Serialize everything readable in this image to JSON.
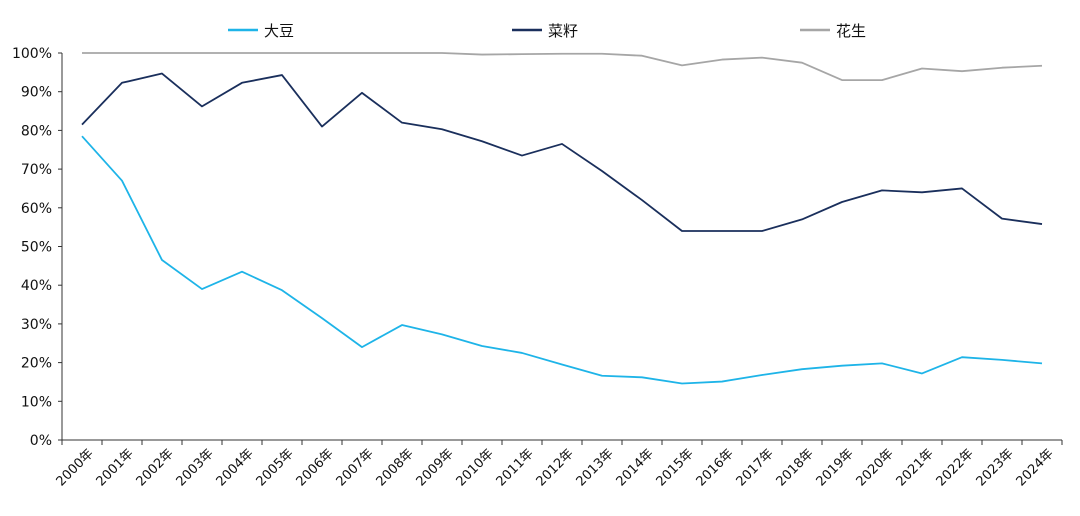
{
  "chart_data": {
    "type": "line",
    "x": [
      "2000年",
      "2001年",
      "2002年",
      "2003年",
      "2004年",
      "2005年",
      "2006年",
      "2007年",
      "2008年",
      "2009年",
      "2010年",
      "2011年",
      "2012年",
      "2013年",
      "2014年",
      "2015年",
      "2016年",
      "2017年",
      "2018年",
      "2019年",
      "2020年",
      "2021年",
      "2022年",
      "2023年",
      "2024年"
    ],
    "series": [
      {
        "name": "大豆",
        "color": "#1eb4e8",
        "values": [
          78.5,
          67,
          46.5,
          39,
          43.5,
          38.7,
          31.5,
          24,
          29.7,
          27.3,
          24.3,
          22.5,
          19.5,
          16.6,
          16.2,
          14.6,
          15.1,
          16.8,
          18.3,
          19.2,
          19.8,
          17.2,
          21.4,
          20.7,
          19.8
        ]
      },
      {
        "name": "菜籽",
        "color": "#1a2f5c",
        "values": [
          81.5,
          92.3,
          94.7,
          86.2,
          92.3,
          94.3,
          81.0,
          89.7,
          82.0,
          80.3,
          77.2,
          73.5,
          76.5,
          69.5,
          62.0,
          54.0,
          54.0,
          54.0,
          57.0,
          61.5,
          64.5,
          64.0,
          65.0,
          57.2,
          55.8
        ]
      },
      {
        "name": "花生",
        "color": "#a6a6a6",
        "values": [
          100,
          100,
          100,
          100,
          100,
          100,
          100,
          100,
          100,
          100,
          99.6,
          99.7,
          99.8,
          99.8,
          99.3,
          96.8,
          98.3,
          98.8,
          97.5,
          93.0,
          93.0,
          96.0,
          95.3,
          96.2,
          96.7
        ]
      }
    ],
    "y_ticks": [
      "0%",
      "10%",
      "20%",
      "30%",
      "40%",
      "50%",
      "60%",
      "70%",
      "80%",
      "90%",
      "100%"
    ],
    "ylim": [
      0,
      100
    ],
    "grid": false,
    "legend_position": "top"
  }
}
